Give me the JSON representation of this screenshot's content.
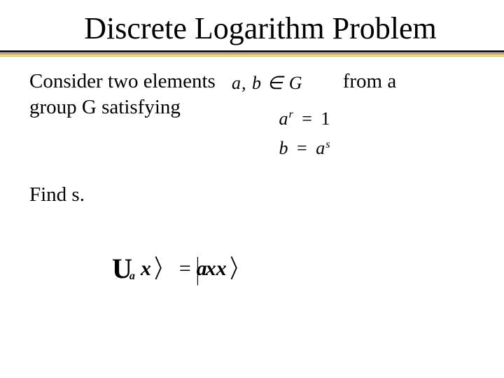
{
  "title": "Discrete Logarithm Problem",
  "rule_colors": {
    "c1": "#111111",
    "c2": "#b9931e",
    "c3": "#e0c562"
  },
  "text": {
    "line1_lead": "Consider two elements",
    "line1_tail": "from a",
    "line2": "group G satisfying"
  },
  "inline_math": "a, b ∈ G",
  "equations": {
    "eq1_lhs_base": "a",
    "eq1_lhs_sup": "r",
    "eq1_rhs": "1",
    "eq2_lhs": "b",
    "eq2_rhs_base": "a",
    "eq2_rhs_sup": "s"
  },
  "find": "Find s.",
  "bottom": {
    "U": "U",
    "sub": "a",
    "x": "x",
    "rangle": "〉",
    "eq": "=",
    "bar": "|",
    "q": "ax"
  }
}
